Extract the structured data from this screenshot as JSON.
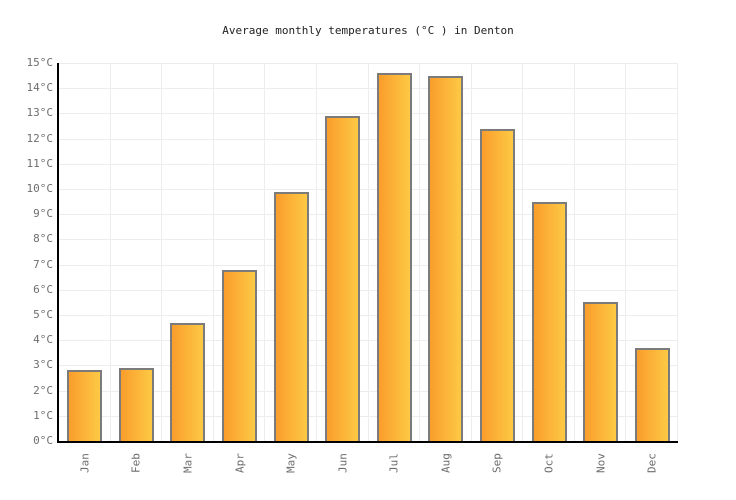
{
  "chart_data": {
    "type": "bar",
    "title": "Average monthly temperatures (°C ) in Denton",
    "categories": [
      "Jan",
      "Feb",
      "Mar",
      "Apr",
      "May",
      "Jun",
      "Jul",
      "Aug",
      "Sep",
      "Oct",
      "Nov",
      "Dec"
    ],
    "values": [
      2.8,
      2.9,
      4.7,
      6.8,
      9.9,
      12.9,
      14.6,
      14.5,
      12.4,
      9.5,
      5.5,
      3.7
    ],
    "unit": "°C",
    "xlabel": "",
    "ylabel": "",
    "ylim": [
      0,
      15
    ],
    "ytick_step": 1,
    "ytick_labels": [
      "0°C",
      "1°C",
      "2°C",
      "3°C",
      "4°C",
      "5°C",
      "6°C",
      "7°C",
      "8°C",
      "9°C",
      "10°C",
      "11°C",
      "12°C",
      "13°C",
      "14°C",
      "15°C"
    ],
    "grid": true,
    "legend": "none",
    "colors": {
      "bar_gradient_left": "#FA9D2C",
      "bar_gradient_right": "#FDC944",
      "bar_border": "#7B7B7B",
      "gridline": "#EDEDED",
      "axis": "#000000",
      "title_text": "#222222",
      "tick_label": "#6E6E6E"
    }
  }
}
